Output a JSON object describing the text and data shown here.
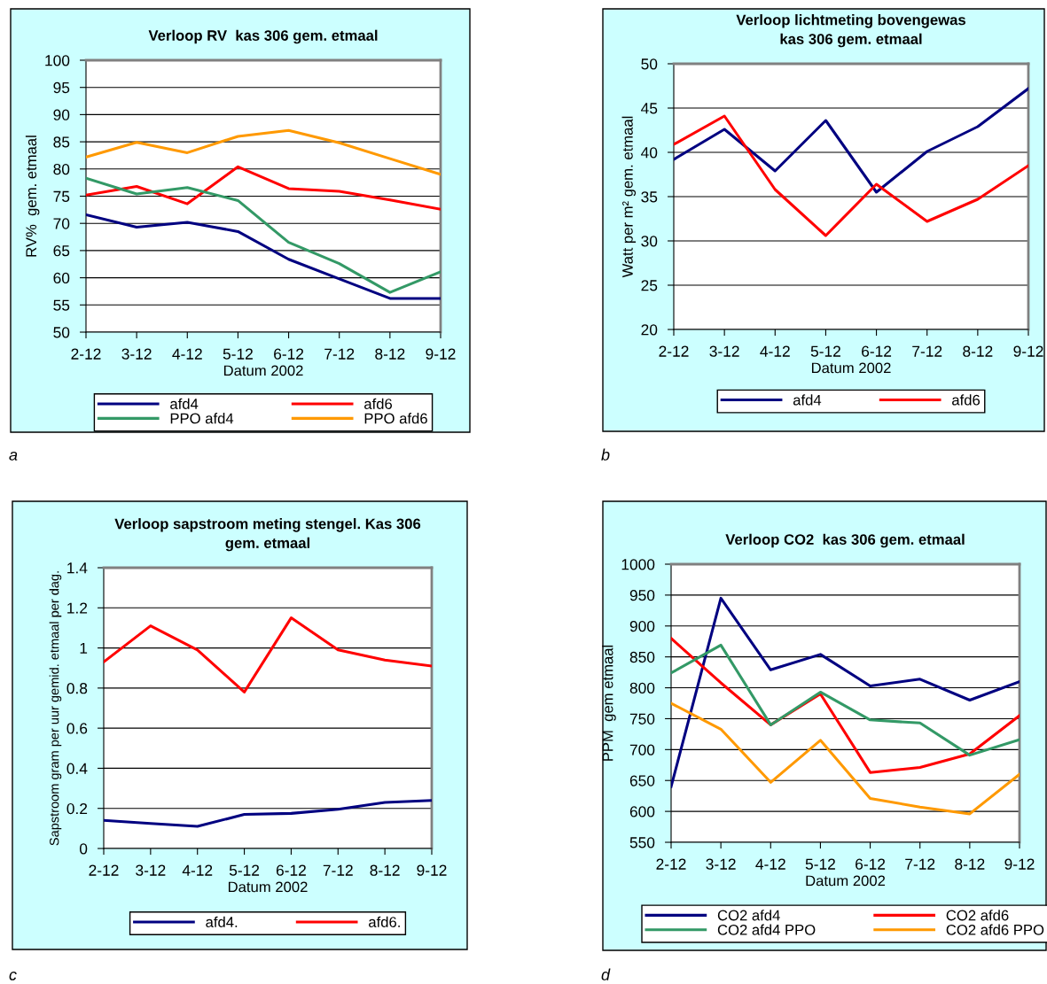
{
  "chart_data": [
    {
      "type": "line",
      "title": "Verloop RV  kas 306 gem. etmaal",
      "xlabel": "Datum 2002",
      "ylabel": "RV%  gem. etmaal",
      "categories": [
        "2-12",
        "3-12",
        "4-12",
        "5-12",
        "6-12",
        "7-12",
        "8-12",
        "9-12"
      ],
      "series": [
        {
          "name": "afd4",
          "color": "#000080",
          "values": [
            71.6,
            69.3,
            70.2,
            68.5,
            63.4,
            59.8,
            56.2,
            56.2
          ]
        },
        {
          "name": "afd6",
          "color": "#ff0000",
          "values": [
            75.2,
            76.8,
            73.6,
            80.4,
            76.4,
            75.9,
            74.3,
            72.6
          ]
        },
        {
          "name": "PPO afd4",
          "color": "#339966",
          "values": [
            78.3,
            75.4,
            76.6,
            74.2,
            66.5,
            62.6,
            57.3,
            61.1
          ]
        },
        {
          "name": "PPO afd6",
          "color": "#ff9900",
          "values": [
            82.2,
            84.9,
            83.0,
            86.0,
            87.1,
            84.8,
            81.9,
            79.0
          ]
        }
      ],
      "ylim": [
        50,
        100
      ],
      "yticks": [
        50,
        55,
        60,
        65,
        70,
        75,
        80,
        85,
        90,
        95,
        100
      ],
      "grid": "y",
      "legend": "bottom",
      "marker": "none",
      "line_style": "solid",
      "annotations": [
        "a"
      ]
    },
    {
      "type": "line",
      "title": "Verloop lichtmeting bovengewas\nkas 306 gem. etmaal",
      "xlabel": "Datum 2002",
      "ylabel": "Watt per m² gem. etmaal",
      "categories": [
        "2-12",
        "3-12",
        "4-12",
        "5-12",
        "6-12",
        "7-12",
        "8-12",
        "9-12"
      ],
      "series": [
        {
          "name": "afd4",
          "color": "#000080",
          "values": [
            39.2,
            42.6,
            37.9,
            43.6,
            35.5,
            40.1,
            42.9,
            47.2
          ]
        },
        {
          "name": "afd6",
          "color": "#ff0000",
          "values": [
            40.9,
            44.1,
            35.8,
            30.6,
            36.4,
            32.2,
            34.7,
            38.5
          ]
        }
      ],
      "ylim": [
        20,
        50
      ],
      "yticks": [
        20,
        25,
        30,
        35,
        40,
        45,
        50
      ],
      "grid": "y",
      "legend": "bottom",
      "marker": "none",
      "line_style": "solid",
      "annotations": [
        "b"
      ]
    },
    {
      "type": "line",
      "title": "Verloop sapstroom meting stengel. Kas 306\ngem. etmaal",
      "xlabel": "Datum 2002",
      "ylabel": "Sapstroom gram per uur gemid. etmaal per dag.",
      "categories": [
        "2-12",
        "3-12",
        "4-12",
        "5-12",
        "6-12",
        "7-12",
        "8-12",
        "9-12"
      ],
      "series": [
        {
          "name": "afd4.",
          "color": "#000080",
          "values": [
            0.14,
            0.125,
            0.11,
            0.17,
            0.175,
            0.195,
            0.23,
            0.24
          ]
        },
        {
          "name": "afd6.",
          "color": "#ff0000",
          "values": [
            0.93,
            1.11,
            0.99,
            0.78,
            1.15,
            0.99,
            0.94,
            0.91
          ]
        }
      ],
      "ylim": [
        0,
        1.4
      ],
      "yticks": [
        0,
        0.2,
        0.4,
        0.6,
        0.8,
        1,
        1.2,
        1.4
      ],
      "grid": "y",
      "legend": "bottom",
      "marker": "none",
      "line_style": "solid",
      "annotations": [
        "c"
      ]
    },
    {
      "type": "line",
      "title": "Verloop CO2  kas 306 gem. etmaal",
      "xlabel": "Datum 2002",
      "ylabel": "PPM  gem etmaal",
      "categories": [
        "2-12",
        "3-12",
        "4-12",
        "5-12",
        "6-12",
        "7-12",
        "8-12",
        "9-12"
      ],
      "series": [
        {
          "name": "CO2 afd4",
          "color": "#000080",
          "values": [
            640,
            945,
            829,
            854,
            803,
            814,
            780,
            810
          ]
        },
        {
          "name": "CO2 afd6",
          "color": "#ff0000",
          "values": [
            880,
            808,
            740,
            790,
            663,
            671,
            693,
            755
          ]
        },
        {
          "name": "CO2 afd4 PPO",
          "color": "#339966",
          "values": [
            824,
            869,
            740,
            793,
            748,
            743,
            691,
            716
          ]
        },
        {
          "name": "CO2 afd6 PPO",
          "color": "#ff9900",
          "values": [
            775,
            733,
            647,
            715,
            621,
            607,
            596,
            660
          ]
        }
      ],
      "ylim": [
        550,
        1000
      ],
      "yticks": [
        550,
        600,
        650,
        700,
        750,
        800,
        850,
        900,
        950,
        1000
      ],
      "grid": "y",
      "legend": "bottom",
      "marker": "none",
      "line_style": "solid",
      "annotations": [
        "d"
      ]
    }
  ]
}
